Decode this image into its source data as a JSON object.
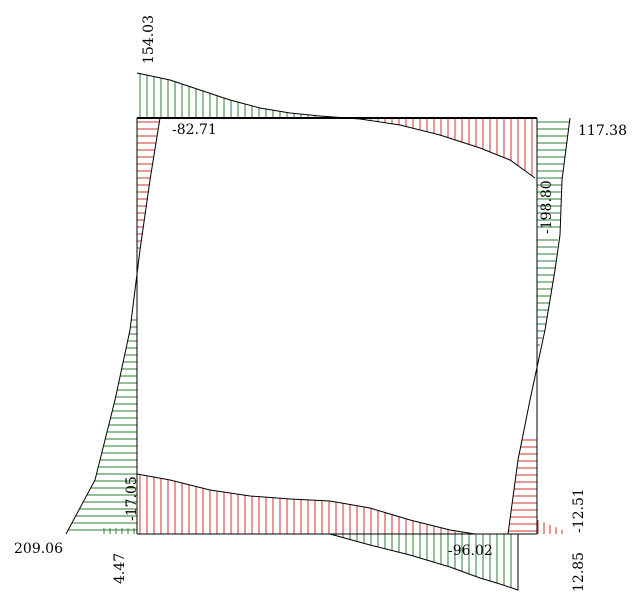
{
  "colors": {
    "positive_fill": "#2e7d32",
    "negative_fill": "#d32f2f",
    "outline": "#000000",
    "frame": "#000000"
  },
  "labels": {
    "top_left_peak": "154.03",
    "top_beam_min": "-82.71",
    "top_right_end": "117.38",
    "right_column_top": "-198.80",
    "left_column_bottom": "209.06",
    "left_bottom_inner": "-17.05",
    "left_bottom_small": "4.47",
    "bottom_beam_right": "-96.02",
    "right_column_bottom": "-12.51",
    "right_bottom_small": "12.85"
  }
}
